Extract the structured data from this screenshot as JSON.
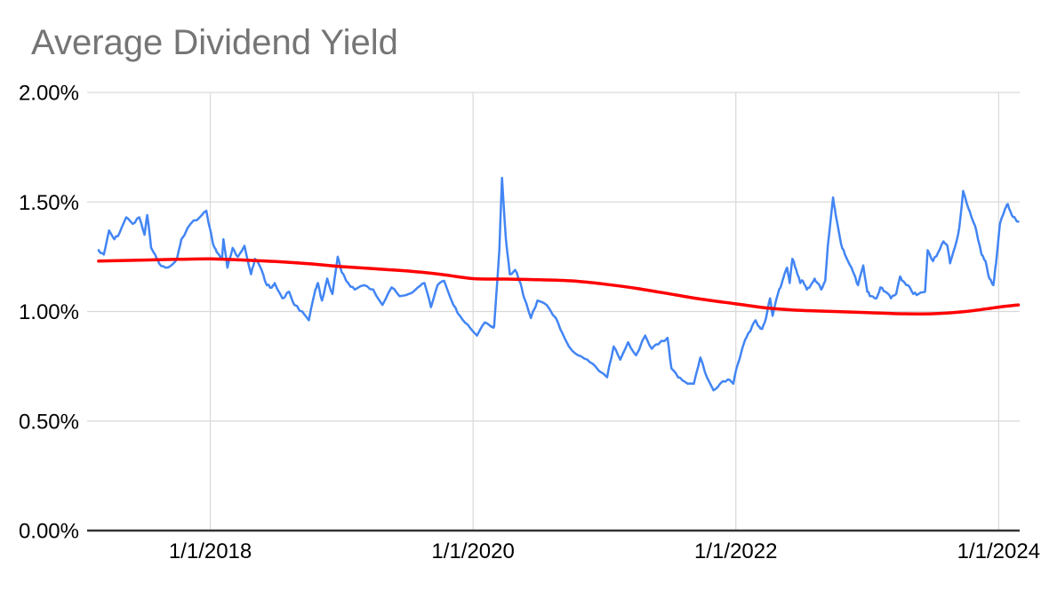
{
  "page": {
    "background": "#ffffff"
  },
  "chart_data": {
    "type": "line",
    "title": "Average Dividend Yield",
    "title_color": "#757575",
    "background": "#ffffff",
    "legend": "none",
    "grid": true,
    "x_axis": {
      "range": [
        2017.11,
        2024.16
      ],
      "gridline_color": "#d9d9d9",
      "ticks": [
        {
          "label": "1/1/2018",
          "year": 2018
        },
        {
          "label": "1/1/2020",
          "year": 2020
        },
        {
          "label": "1/1/2022",
          "year": 2022
        },
        {
          "label": "1/1/2024",
          "year": 2024
        }
      ]
    },
    "y_axis": {
      "min": 0,
      "max": 2,
      "gridline_color": "#d9d9d9",
      "axis_line_color": "#333333",
      "label_color": "#000000",
      "ticks": [
        {
          "label": "0.00%",
          "value": 0
        },
        {
          "label": "0.50%",
          "value": 0.5
        },
        {
          "label": "1.00%",
          "value": 1
        },
        {
          "label": "1.50%",
          "value": 1.5
        },
        {
          "label": "2.00%",
          "value": 2
        }
      ]
    },
    "series": [
      {
        "name": "blue-daily-yield-line",
        "color": "#4285f4",
        "stroke_width": 2.5,
        "points": [
          [
            2017.15,
            1.28
          ],
          [
            2017.19,
            1.26
          ],
          [
            2017.23,
            1.37
          ],
          [
            2017.27,
            1.33
          ],
          [
            2017.31,
            1.36
          ],
          [
            2017.36,
            1.43
          ],
          [
            2017.41,
            1.4
          ],
          [
            2017.46,
            1.43
          ],
          [
            2017.5,
            1.35
          ],
          [
            2017.52,
            1.44
          ],
          [
            2017.55,
            1.29
          ],
          [
            2017.58,
            1.26
          ],
          [
            2017.61,
            1.22
          ],
          [
            2017.66,
            1.2
          ],
          [
            2017.72,
            1.22
          ],
          [
            2017.75,
            1.25
          ],
          [
            2017.78,
            1.33
          ],
          [
            2017.85,
            1.4
          ],
          [
            2017.92,
            1.43
          ],
          [
            2017.97,
            1.46
          ],
          [
            2018.02,
            1.31
          ],
          [
            2018.05,
            1.27
          ],
          [
            2018.09,
            1.24
          ],
          [
            2018.1,
            1.33
          ],
          [
            2018.13,
            1.2
          ],
          [
            2018.17,
            1.29
          ],
          [
            2018.21,
            1.25
          ],
          [
            2018.26,
            1.3
          ],
          [
            2018.31,
            1.17
          ],
          [
            2018.34,
            1.24
          ],
          [
            2018.39,
            1.19
          ],
          [
            2018.43,
            1.12
          ],
          [
            2018.47,
            1.11
          ],
          [
            2018.49,
            1.13
          ],
          [
            2018.55,
            1.06
          ],
          [
            2018.6,
            1.09
          ],
          [
            2018.64,
            1.03
          ],
          [
            2018.7,
            1.0
          ],
          [
            2018.75,
            0.96
          ],
          [
            2018.8,
            1.1
          ],
          [
            2018.82,
            1.13
          ],
          [
            2018.85,
            1.05
          ],
          [
            2018.89,
            1.15
          ],
          [
            2018.93,
            1.08
          ],
          [
            2018.97,
            1.25
          ],
          [
            2019.0,
            1.18
          ],
          [
            2019.05,
            1.13
          ],
          [
            2019.1,
            1.1
          ],
          [
            2019.17,
            1.12
          ],
          [
            2019.24,
            1.1
          ],
          [
            2019.31,
            1.03
          ],
          [
            2019.38,
            1.11
          ],
          [
            2019.44,
            1.07
          ],
          [
            2019.51,
            1.08
          ],
          [
            2019.58,
            1.11
          ],
          [
            2019.63,
            1.13
          ],
          [
            2019.68,
            1.02
          ],
          [
            2019.73,
            1.12
          ],
          [
            2019.78,
            1.14
          ],
          [
            2019.85,
            1.03
          ],
          [
            2019.9,
            0.98
          ],
          [
            2019.96,
            0.94
          ],
          [
            2020.03,
            0.89
          ],
          [
            2020.09,
            0.95
          ],
          [
            2020.14,
            0.93
          ],
          [
            2020.16,
            0.93
          ],
          [
            2020.2,
            1.28
          ],
          [
            2020.22,
            1.61
          ],
          [
            2020.25,
            1.33
          ],
          [
            2020.28,
            1.17
          ],
          [
            2020.32,
            1.19
          ],
          [
            2020.36,
            1.13
          ],
          [
            2020.39,
            1.06
          ],
          [
            2020.44,
            0.97
          ],
          [
            2020.49,
            1.05
          ],
          [
            2020.56,
            1.03
          ],
          [
            2020.63,
            0.97
          ],
          [
            2020.68,
            0.9
          ],
          [
            2020.73,
            0.84
          ],
          [
            2020.8,
            0.8
          ],
          [
            2020.87,
            0.78
          ],
          [
            2020.93,
            0.75
          ],
          [
            2021.02,
            0.7
          ],
          [
            2021.07,
            0.84
          ],
          [
            2021.12,
            0.78
          ],
          [
            2021.18,
            0.86
          ],
          [
            2021.24,
            0.8
          ],
          [
            2021.31,
            0.89
          ],
          [
            2021.36,
            0.83
          ],
          [
            2021.41,
            0.85
          ],
          [
            2021.48,
            0.88
          ],
          [
            2021.51,
            0.74
          ],
          [
            2021.56,
            0.7
          ],
          [
            2021.61,
            0.68
          ],
          [
            2021.68,
            0.67
          ],
          [
            2021.73,
            0.79
          ],
          [
            2021.78,
            0.7
          ],
          [
            2021.83,
            0.64
          ],
          [
            2021.88,
            0.67
          ],
          [
            2021.94,
            0.69
          ],
          [
            2021.98,
            0.67
          ],
          [
            2022.01,
            0.75
          ],
          [
            2022.07,
            0.87
          ],
          [
            2022.11,
            0.91
          ],
          [
            2022.15,
            0.96
          ],
          [
            2022.18,
            0.93
          ],
          [
            2022.2,
            0.92
          ],
          [
            2022.23,
            0.97
          ],
          [
            2022.26,
            1.06
          ],
          [
            2022.28,
            0.98
          ],
          [
            2022.32,
            1.08
          ],
          [
            2022.35,
            1.13
          ],
          [
            2022.37,
            1.17
          ],
          [
            2022.39,
            1.2
          ],
          [
            2022.41,
            1.13
          ],
          [
            2022.43,
            1.24
          ],
          [
            2022.46,
            1.19
          ],
          [
            2022.49,
            1.13
          ],
          [
            2022.51,
            1.14
          ],
          [
            2022.54,
            1.1
          ],
          [
            2022.57,
            1.12
          ],
          [
            2022.6,
            1.15
          ],
          [
            2022.62,
            1.13
          ],
          [
            2022.65,
            1.1
          ],
          [
            2022.68,
            1.14
          ],
          [
            2022.7,
            1.3
          ],
          [
            2022.74,
            1.52
          ],
          [
            2022.76,
            1.44
          ],
          [
            2022.8,
            1.31
          ],
          [
            2022.83,
            1.26
          ],
          [
            2022.87,
            1.21
          ],
          [
            2022.9,
            1.17
          ],
          [
            2022.93,
            1.12
          ],
          [
            2022.97,
            1.21
          ],
          [
            2023.0,
            1.09
          ],
          [
            2023.03,
            1.07
          ],
          [
            2023.07,
            1.06
          ],
          [
            2023.1,
            1.11
          ],
          [
            2023.14,
            1.09
          ],
          [
            2023.18,
            1.06
          ],
          [
            2023.22,
            1.08
          ],
          [
            2023.25,
            1.16
          ],
          [
            2023.27,
            1.14
          ],
          [
            2023.31,
            1.12
          ],
          [
            2023.35,
            1.08
          ],
          [
            2023.39,
            1.08
          ],
          [
            2023.44,
            1.09
          ],
          [
            2023.46,
            1.28
          ],
          [
            2023.5,
            1.23
          ],
          [
            2023.54,
            1.27
          ],
          [
            2023.58,
            1.32
          ],
          [
            2023.61,
            1.3
          ],
          [
            2023.63,
            1.22
          ],
          [
            2023.67,
            1.3
          ],
          [
            2023.7,
            1.38
          ],
          [
            2023.73,
            1.55
          ],
          [
            2023.77,
            1.47
          ],
          [
            2023.8,
            1.42
          ],
          [
            2023.83,
            1.37
          ],
          [
            2023.87,
            1.26
          ],
          [
            2023.9,
            1.23
          ],
          [
            2023.93,
            1.15
          ],
          [
            2023.96,
            1.12
          ],
          [
            2023.98,
            1.22
          ],
          [
            2024.01,
            1.4
          ],
          [
            2024.05,
            1.47
          ],
          [
            2024.07,
            1.49
          ],
          [
            2024.1,
            1.44
          ],
          [
            2024.13,
            1.42
          ],
          [
            2024.15,
            1.41
          ]
        ]
      },
      {
        "name": "red-smoothed-average-line",
        "color": "#ff0000",
        "stroke_width": 3.5,
        "points": [
          [
            2017.15,
            1.23
          ],
          [
            2017.5,
            1.235
          ],
          [
            2017.75,
            1.238
          ],
          [
            2018.0,
            1.24
          ],
          [
            2018.25,
            1.235
          ],
          [
            2018.5,
            1.228
          ],
          [
            2018.75,
            1.218
          ],
          [
            2019.0,
            1.205
          ],
          [
            2019.25,
            1.195
          ],
          [
            2019.5,
            1.185
          ],
          [
            2019.75,
            1.17
          ],
          [
            2020.0,
            1.15
          ],
          [
            2020.25,
            1.148
          ],
          [
            2020.5,
            1.145
          ],
          [
            2020.75,
            1.14
          ],
          [
            2021.0,
            1.125
          ],
          [
            2021.25,
            1.105
          ],
          [
            2021.5,
            1.08
          ],
          [
            2021.75,
            1.055
          ],
          [
            2022.0,
            1.035
          ],
          [
            2022.25,
            1.015
          ],
          [
            2022.5,
            1.005
          ],
          [
            2022.75,
            1.0
          ],
          [
            2023.0,
            0.995
          ],
          [
            2023.25,
            0.99
          ],
          [
            2023.5,
            0.99
          ],
          [
            2023.75,
            1.0
          ],
          [
            2024.0,
            1.02
          ],
          [
            2024.15,
            1.03
          ]
        ]
      }
    ]
  }
}
